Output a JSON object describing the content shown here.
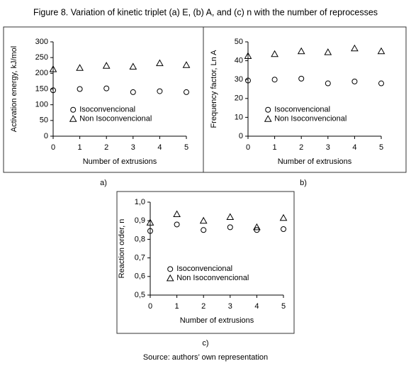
{
  "title": "Figure 8. Variation of kinetic triplet (a) E, (b) A, and (c) n with the number of reprocesses",
  "source": "Source: authors’ own representation",
  "chart_data": [
    {
      "type": "scatter",
      "caption": "a)",
      "x_label": "Number of extrusions",
      "y_label": "Activation energy, kJ/mol",
      "x": [
        0,
        1,
        2,
        3,
        4,
        5
      ],
      "xlim": [
        0,
        5
      ],
      "xticks": [
        0,
        1,
        2,
        3,
        4,
        5
      ],
      "ylim": [
        0,
        300
      ],
      "yticks": [
        0,
        50,
        100,
        150,
        200,
        250,
        300
      ],
      "legend": "center",
      "series": [
        {
          "name": "Isoconvencional",
          "color": "#000000",
          "marker": "circle",
          "values": [
            146,
            150,
            152,
            140,
            143,
            140
          ]
        },
        {
          "name": "Non Isoconvencional",
          "color": "#000000",
          "marker": "triangle",
          "values": [
            213,
            217,
            224,
            221,
            232,
            226
          ]
        }
      ]
    },
    {
      "type": "scatter",
      "caption": "b)",
      "x_label": "Number of extrusions",
      "y_label": "Frequency factor, Ln A",
      "x": [
        0,
        1,
        2,
        3,
        4,
        5
      ],
      "xlim": [
        0,
        5
      ],
      "xticks": [
        0,
        1,
        2,
        3,
        4,
        5
      ],
      "ylim": [
        0,
        50
      ],
      "yticks": [
        0,
        10,
        20,
        30,
        40,
        50
      ],
      "legend": "center",
      "series": [
        {
          "name": "Isoconvencional",
          "color": "#000000",
          "marker": "circle",
          "values": [
            29.5,
            30,
            30.5,
            28,
            29,
            28
          ]
        },
        {
          "name": "Non Isoconvencional",
          "color": "#000000",
          "marker": "triangle",
          "values": [
            42.5,
            43.5,
            45,
            44.5,
            46.5,
            45
          ]
        }
      ]
    },
    {
      "type": "scatter",
      "caption": "c)",
      "x_label": "Number of extrusions",
      "y_label": "Reaction order, n",
      "x": [
        0,
        1,
        2,
        3,
        4,
        5
      ],
      "xlim": [
        0,
        5
      ],
      "xticks": [
        0,
        1,
        2,
        3,
        4,
        5
      ],
      "ylim": [
        0.5,
        1.0
      ],
      "yticks": [
        {
          "value": 0.5,
          "label": "0,5"
        },
        {
          "value": 0.6,
          "label": "0,6"
        },
        {
          "value": 0.7,
          "label": "0,7"
        },
        {
          "value": 0.8,
          "label": "0,8"
        },
        {
          "value": 0.9,
          "label": "0,9"
        },
        {
          "value": 1.0,
          "label": "1,0"
        }
      ],
      "legend": "center",
      "series": [
        {
          "name": "Isoconvencional",
          "color": "#000000",
          "marker": "circle",
          "values": [
            0.845,
            0.88,
            0.85,
            0.865,
            0.85,
            0.855
          ]
        },
        {
          "name": "Non Isoconvencional",
          "color": "#000000",
          "marker": "triangle",
          "values": [
            0.89,
            0.935,
            0.9,
            0.92,
            0.865,
            0.915
          ]
        }
      ]
    }
  ]
}
